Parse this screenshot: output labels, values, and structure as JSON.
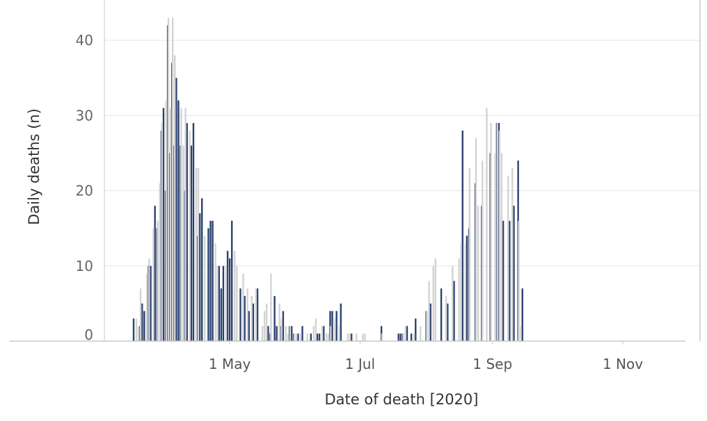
{
  "chart_data": {
    "type": "bar",
    "xlabel": "Date of death [2020]",
    "ylabel": "Daily deaths (n)",
    "ylim": [
      0,
      45
    ],
    "y_ticks": [
      0,
      10,
      20,
      30,
      40
    ],
    "x_ticks": [
      {
        "label": "1 May",
        "date": "2020-05-01"
      },
      {
        "label": "1 Jul",
        "date": "2020-07-01"
      },
      {
        "label": "1 Sep",
        "date": "2020-09-01"
      },
      {
        "label": "1 Nov",
        "date": "2020-11-01"
      }
    ],
    "grid": true,
    "legend": "none",
    "colors": {
      "series_dark": "#2b4270",
      "series_light": "#d3d3d3",
      "grid": "#e6e6e6",
      "axis": "#c8c8c8"
    },
    "start_date": "2020-03-17",
    "series": [
      {
        "color": "#2b4270",
        "values": [
          3,
          0,
          0,
          2,
          5,
          4,
          0,
          10,
          10,
          0,
          18,
          15,
          0,
          28,
          31,
          20,
          42,
          25,
          37,
          26,
          35,
          32,
          26,
          0,
          20,
          29,
          0,
          26,
          29,
          0,
          14,
          17,
          19,
          0,
          0,
          15,
          16,
          16,
          0,
          0,
          10,
          7,
          10,
          0,
          12,
          11,
          16,
          0,
          0,
          0,
          7,
          0,
          6,
          0,
          4,
          0,
          5,
          0,
          7,
          0,
          0,
          0,
          0,
          2,
          1,
          0,
          6,
          2,
          0,
          2,
          4,
          0,
          0,
          2,
          2,
          1,
          0,
          1,
          0,
          2,
          0,
          0,
          0,
          1,
          0,
          0,
          1,
          1,
          0,
          2,
          0,
          0,
          4,
          4,
          0,
          4,
          0,
          5,
          0,
          0,
          0,
          0,
          1,
          0,
          0,
          0,
          0,
          0,
          0,
          0,
          0,
          0,
          0,
          0,
          0,
          0,
          2,
          0,
          0,
          0,
          0,
          0,
          0,
          0,
          1,
          1,
          1,
          0,
          2,
          0,
          1,
          0,
          3,
          0,
          0,
          0,
          0,
          4,
          0,
          5,
          0,
          0,
          0,
          0,
          7,
          0,
          0,
          5,
          0,
          0,
          8,
          0,
          0,
          0,
          28,
          0,
          14,
          15,
          0,
          0,
          21,
          0,
          0,
          18,
          0,
          0,
          0,
          25,
          0,
          0,
          29,
          29,
          0,
          16,
          0,
          0,
          16,
          0,
          18,
          0,
          24,
          0,
          7,
          0
        ]
      },
      {
        "color": "#d3d3d3",
        "values": [
          0,
          3,
          2,
          7,
          0,
          0,
          9,
          11,
          0,
          15,
          0,
          16,
          21,
          29,
          0,
          32,
          43,
          31,
          43,
          38,
          0,
          0,
          31,
          26,
          31,
          0,
          28,
          0,
          0,
          23,
          23,
          0,
          0,
          14,
          0,
          0,
          0,
          0,
          13,
          10,
          0,
          0,
          0,
          10,
          0,
          0,
          0,
          12,
          10,
          0,
          0,
          9,
          0,
          7,
          0,
          6,
          0,
          7,
          0,
          0,
          2,
          4,
          5,
          0,
          9,
          0,
          0,
          0,
          5,
          3,
          0,
          2,
          1,
          2,
          0,
          1,
          1,
          0,
          1,
          0,
          0,
          1,
          0,
          0,
          2,
          3,
          0,
          0,
          2,
          0,
          1,
          1,
          2,
          0,
          3,
          0,
          2,
          0,
          0,
          0,
          1,
          1,
          0,
          0,
          1,
          0,
          0,
          1,
          1,
          0,
          0,
          0,
          0,
          0,
          0,
          0,
          1,
          0,
          0,
          0,
          0,
          0,
          0,
          0,
          0,
          0,
          1,
          2,
          0,
          0,
          0,
          1,
          0,
          0,
          2,
          0,
          0,
          4,
          8,
          0,
          10,
          11,
          0,
          0,
          0,
          0,
          6,
          0,
          0,
          10,
          0,
          0,
          11,
          13,
          0,
          13,
          0,
          23,
          0,
          0,
          27,
          18,
          0,
          24,
          0,
          31,
          0,
          29,
          0,
          25,
          29,
          28,
          25,
          0,
          0,
          22,
          0,
          23,
          0,
          0,
          16,
          2
        ]
      }
    ]
  }
}
